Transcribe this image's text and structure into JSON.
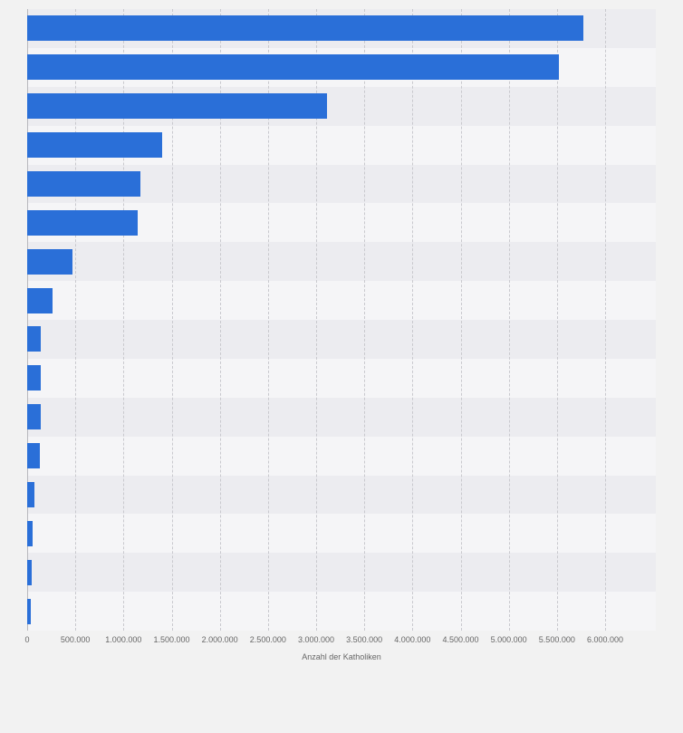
{
  "chart_data": {
    "type": "bar",
    "orientation": "horizontal",
    "title": "",
    "xlabel": "Anzahl der Katholiken",
    "ylabel": "",
    "xlim": [
      0,
      6000000
    ],
    "grid": "vertical-dashed",
    "legend": "none",
    "values": [
      5770000,
      5520000,
      3110000,
      1400000,
      1180000,
      1150000,
      470000,
      260000,
      140000,
      140000,
      145000,
      130000,
      75000,
      55000,
      45000,
      35000
    ],
    "x_tick_labels": [
      "0",
      "500.000",
      "1.000.000",
      "1.500.000",
      "2.000.000",
      "2.500.000",
      "3.000.000",
      "3.500.000",
      "4.000.000",
      "4.500.000",
      "5.000.000",
      "5.500.000",
      "6.000.000"
    ],
    "x_tick_values": [
      0,
      500000,
      1000000,
      1500000,
      2000000,
      2500000,
      3000000,
      3500000,
      4000000,
      4500000,
      5000000,
      5500000,
      6000000
    ]
  },
  "axis": {
    "x_label": "Anzahl der Katholiken"
  },
  "colors": {
    "bar": "#2a6fd8",
    "background": "#f2f2f2",
    "row_odd": "#ececf0",
    "row_even": "#f5f5f7",
    "grid": "#c9c9ce",
    "axis_line": "#b8b8bd",
    "tick_text": "#666666"
  }
}
